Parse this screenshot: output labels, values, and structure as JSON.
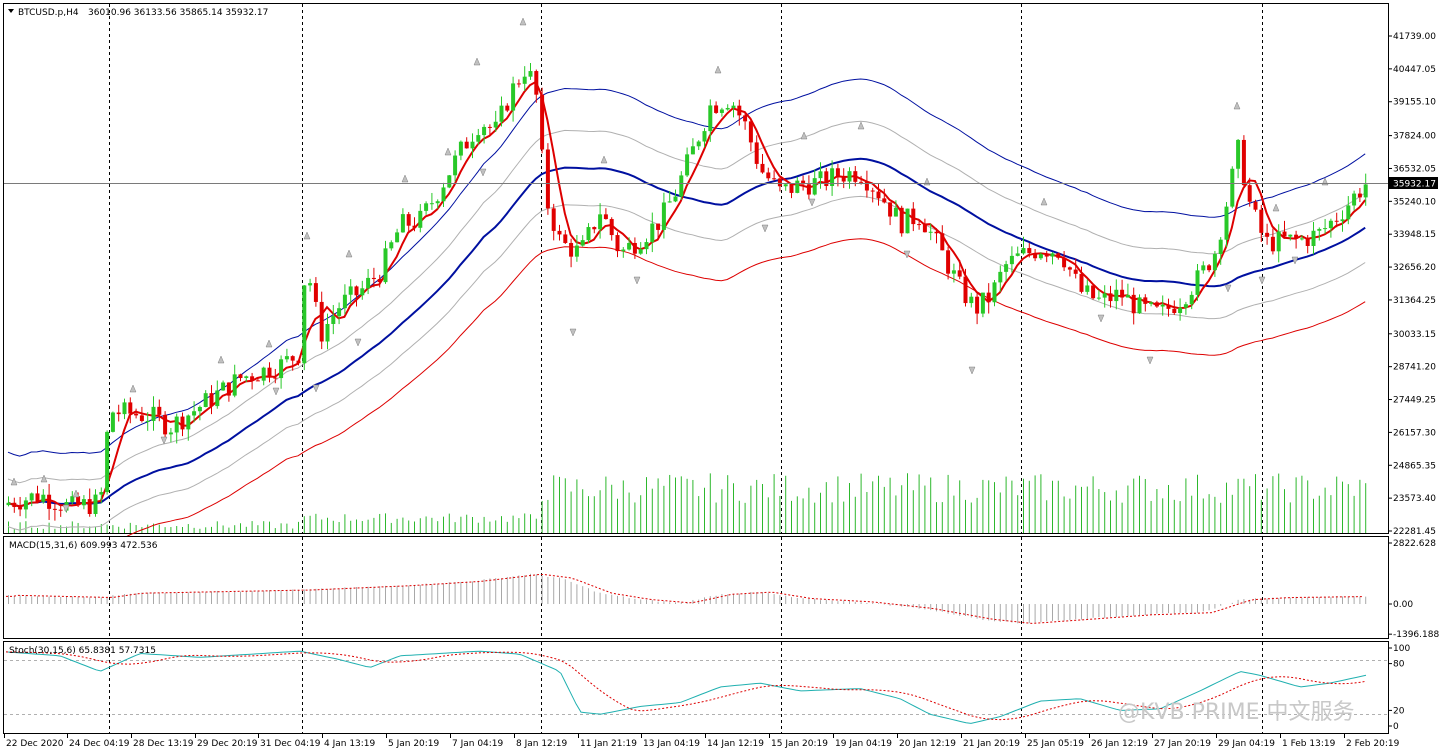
{
  "main_chart": {
    "header": {
      "symbol": "BTCUSD.p,H4",
      "ohlc": "36010.96 36133.56 35865.14 35932.17"
    },
    "current_price": "35932.17",
    "y_tick_labels": [
      "41739.00",
      "40447.05",
      "39155.10",
      "37824.00",
      "36532.05",
      "35240.10",
      "33948.15",
      "32656.20",
      "31364.25",
      "30033.15",
      "28741.20",
      "27449.25",
      "26157.30",
      "24865.35",
      "23573.40",
      "22281.45"
    ],
    "colors": {
      "bull": "#28c828",
      "bear": "#e00000",
      "ma_fast": "#dd0000",
      "ma_mid": "#0010a0",
      "band_upper": "#0010a0",
      "band_lower": "#dd0000",
      "band_inner": "#b0b0b0",
      "volume": "#2db82d"
    }
  },
  "x_tick_labels": [
    "22 Dec 2020",
    "24 Dec 04:19",
    "28 Dec 13:19",
    "29 Dec 20:19",
    "31 Dec 04:19",
    "4 Jan 13:19",
    "5 Jan 20:19",
    "7 Jan 04:19",
    "8 Jan 12:19",
    "11 Jan 21:19",
    "13 Jan 04:19",
    "14 Jan 12:19",
    "15 Jan 20:19",
    "19 Jan 04:19",
    "20 Jan 12:19",
    "21 Jan 20:19",
    "25 Jan 05:19",
    "26 Jan 12:19",
    "27 Jan 20:19",
    "29 Jan 04:19",
    "1 Feb 13:19",
    "2 Feb 20:19"
  ],
  "macd": {
    "label": "MACD(15,31,6) 609.993 472.536",
    "y_tick_labels": [
      "2822.628",
      "0.00",
      "-1396.188"
    ]
  },
  "stoch": {
    "label": "Stoch(30,15,6) 65.8381 57.7315",
    "y_tick_labels": [
      "100",
      "80",
      "20",
      "0"
    ]
  },
  "watermark": "@KVB PRIME 中文服务",
  "chart_data": [
    {
      "type": "candlestick",
      "title": "BTCUSD.p,H4",
      "timeframe": "H4",
      "ylim": [
        22281.45,
        42300
      ],
      "ohlc_approx": [
        {
          "date": "22 Dec 2020",
          "close": 23400
        },
        {
          "date": "24 Dec 04:19",
          "close": 23300
        },
        {
          "date": "28 Dec 13:19",
          "close": 27000
        },
        {
          "date": "29 Dec 20:19",
          "close": 27800
        },
        {
          "date": "31 Dec 04:19",
          "close": 28900
        },
        {
          "date": "4 Jan 13:19",
          "close": 31100
        },
        {
          "date": "5 Jan 20:19",
          "close": 34100
        },
        {
          "date": "7 Jan 04:19",
          "close": 39400
        },
        {
          "date": "8 Jan 12:19",
          "close": 40600
        },
        {
          "date": "11 Jan 21:19",
          "close": 34000
        },
        {
          "date": "13 Jan 04:19",
          "close": 34000
        },
        {
          "date": "14 Jan 12:19",
          "close": 39300
        },
        {
          "date": "15 Jan 20:19",
          "close": 36000
        },
        {
          "date": "19 Jan 04:19",
          "close": 36500
        },
        {
          "date": "20 Jan 12:19",
          "close": 35000
        },
        {
          "date": "21 Jan 20:19",
          "close": 31300
        },
        {
          "date": "25 Jan 05:19",
          "close": 33300
        },
        {
          "date": "26 Jan 12:19",
          "close": 31500
        },
        {
          "date": "27 Jan 20:19",
          "close": 31600
        },
        {
          "date": "29 Jan 04:19",
          "close": 36800
        },
        {
          "date": "1 Feb 13:19",
          "close": 33900
        },
        {
          "date": "2 Feb 20:19",
          "close": 35932.17
        }
      ],
      "overlays": [
        "fast moving average (red)",
        "middle moving average (blue)",
        "envelope bands (upper blue, lower red, inner grey)",
        "fractal arrows"
      ],
      "sub_series": [
        "volume bars (green)"
      ]
    },
    {
      "type": "bar",
      "title": "MACD(15,31,6)",
      "values_label": [
        "609.993",
        "472.536"
      ],
      "ylim": [
        -1396.188,
        2822.628
      ]
    },
    {
      "type": "line",
      "title": "Stoch(30,15,6)",
      "values_label": [
        "65.8381",
        "57.7315"
      ],
      "ylim": [
        0,
        100
      ],
      "levels": [
        80,
        20
      ]
    }
  ]
}
